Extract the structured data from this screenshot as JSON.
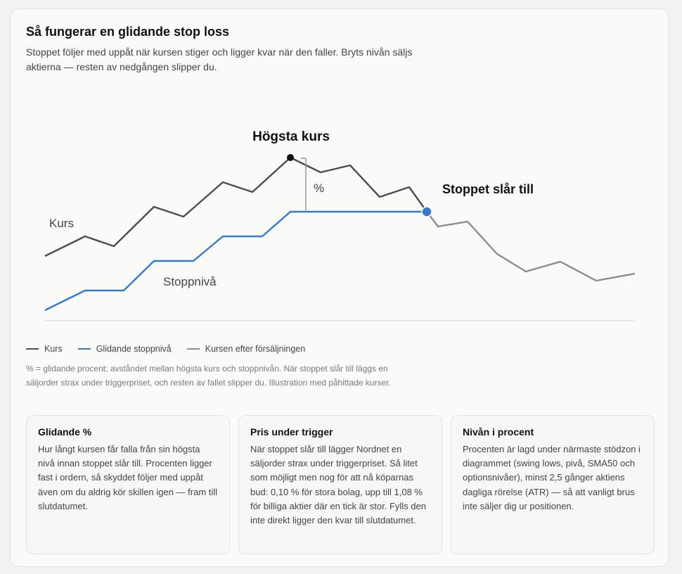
{
  "card": {
    "title": "Så fungerar en glidande stop loss",
    "subtitle": "Stoppet följer med uppåt när kursen stiger och ligger kvar när den faller. Bryts nivån säljs aktierna — resten av nedgången slipper du."
  },
  "diagram": {
    "annotations": {
      "highest": "Högsta kurs",
      "percent": "%",
      "trigger": "Stoppet slår till",
      "price_label": "Kurs",
      "stop_label": "Stoppnivå"
    },
    "colors": {
      "price": "#4d4d4d",
      "stop": "#2f7bd6",
      "after": "#8c8c8c",
      "axis": "#d0d0d0"
    }
  },
  "legend": {
    "price": "Kurs",
    "stop": "Glidande stoppnivå",
    "after": "Kursen efter försäljningen"
  },
  "note": "% = glidande procent: avståndet mellan högsta kurs och stoppnivån. När stoppet slår till läggs en säljorder strax under triggerpriset, och resten av fallet slipper du. Illustration med påhittade kurser.",
  "cards": [
    {
      "title": "Glidande %",
      "text": "Hur långt kursen får falla från sin högsta nivå innan stoppet slår till. Procenten ligger fast i ordern, så skyddet följer med uppåt även om du aldrig kör skillen igen — fram till slutdatumet."
    },
    {
      "title": "Pris under trigger",
      "text": "När stoppet slår till lägger Nordnet en säljorder strax under triggerpriset. Så litet som möjligt men nog för att nå köparnas bud: 0,10 % för stora bolag, upp till 1,08 % för billiga aktier där en tick är stor. Fylls den inte direkt ligger den kvar till slutdatumet."
    },
    {
      "title": "Nivån i procent",
      "text": "Procenten är lagd under närmaste stödzon i diagrammet (swing lows, pivå, SMA50 och optionsnivåer), minst 2,5 gånger aktiens dagliga rörelse (ATR) — så att vanligt brus inte säljer dig ur positionen."
    }
  ]
}
